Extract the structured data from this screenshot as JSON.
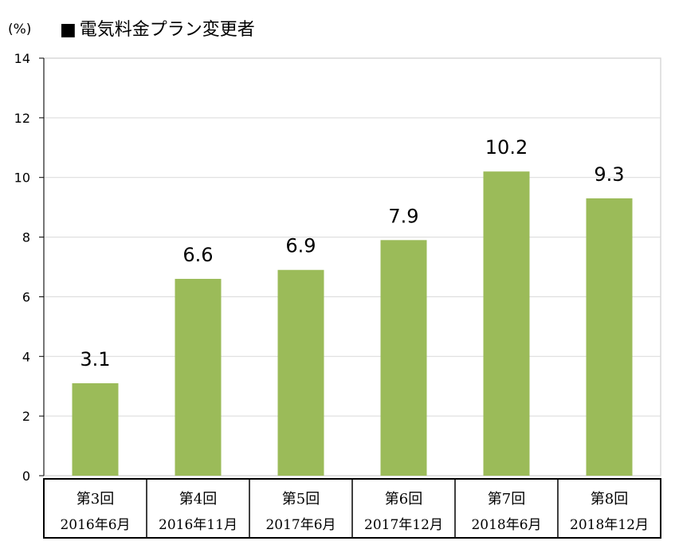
{
  "unit_label": "(%)",
  "legend": {
    "marker": "■",
    "label": "電気料金プラン変更者"
  },
  "colors": {
    "bar": "#9bbb59",
    "grid": "#d9d9d9",
    "axis": "#000000"
  },
  "chart_data": {
    "type": "bar",
    "title": "",
    "ylabel": "(%)",
    "ylim": [
      0,
      14
    ],
    "yticks": [
      0,
      2,
      4,
      6,
      8,
      10,
      12,
      14
    ],
    "grid": true,
    "categories": [
      [
        "第3回",
        "2016年6月"
      ],
      [
        "第4回",
        "2016年11月"
      ],
      [
        "第5回",
        "2017年6月"
      ],
      [
        "第6回",
        "2017年12月"
      ],
      [
        "第7回",
        "2018年6月"
      ],
      [
        "第8回",
        "2018年12月"
      ]
    ],
    "series": [
      {
        "name": "電気料金プラン変更者",
        "values": [
          3.1,
          6.6,
          6.9,
          7.9,
          10.2,
          9.3
        ]
      }
    ],
    "data_labels": [
      "3.1",
      "6.6",
      "6.9",
      "7.9",
      "10.2",
      "9.3"
    ]
  }
}
